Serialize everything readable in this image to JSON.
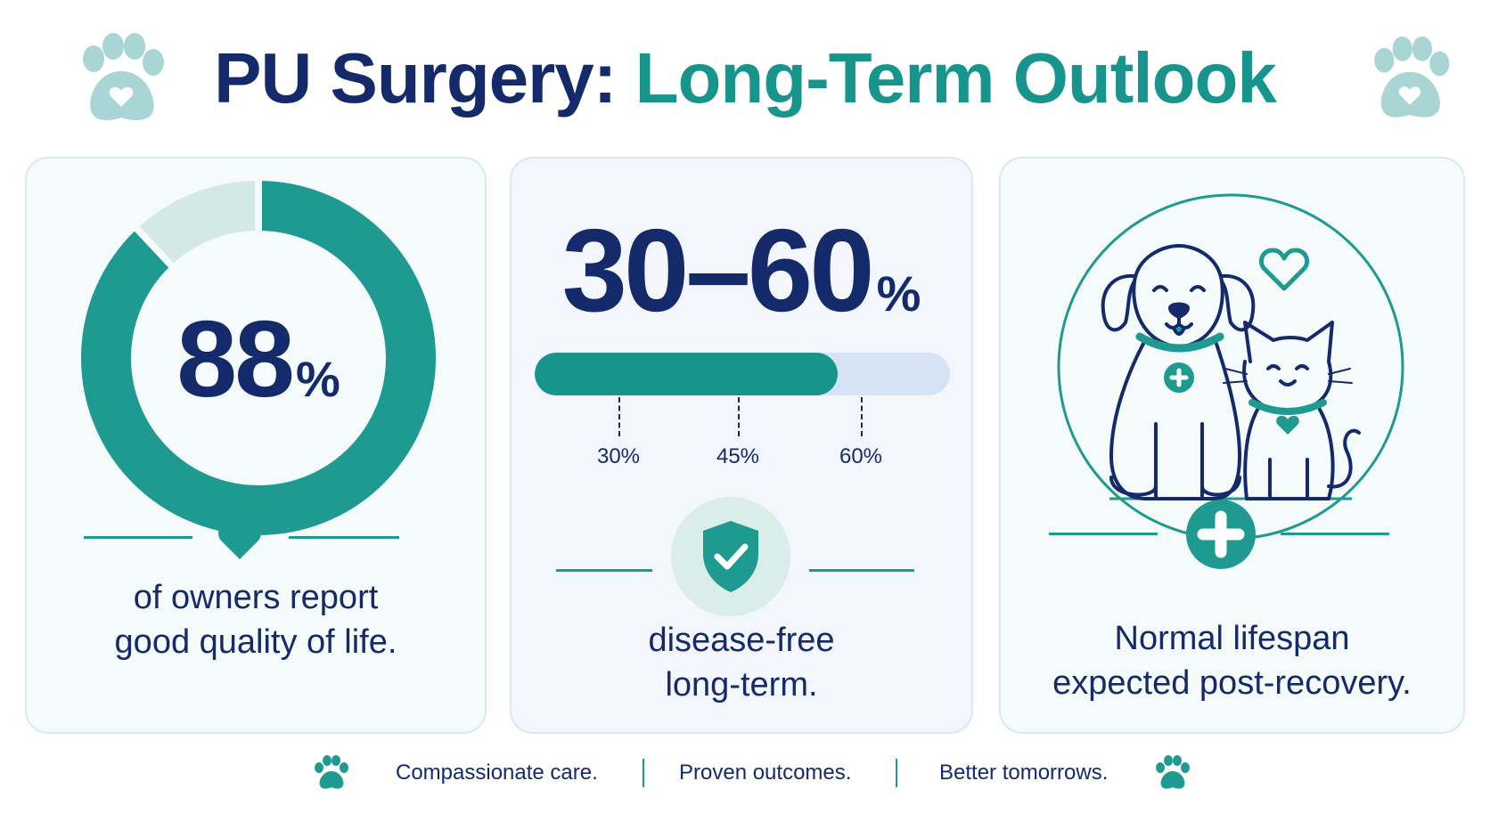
{
  "title": {
    "part1": "PU Surgery:",
    "part2": "Long-Term Outlook"
  },
  "colors": {
    "navy": "#142a6b",
    "teal": "#17958c",
    "light_teal": "#d4ecec",
    "track": "#d6e2f5"
  },
  "stat1": {
    "value": "88",
    "unit": "%",
    "fraction": 0.88,
    "caption_line1": "of owners report",
    "caption_line2": "good quality of life."
  },
  "stat2": {
    "value": "30–60",
    "unit": "%",
    "bar_fill_fraction": 0.73,
    "ticks": [
      "30%",
      "45%",
      "60%"
    ],
    "caption_line1": "disease-free",
    "caption_line2": "long-term."
  },
  "stat3": {
    "caption_line1": "Normal lifespan",
    "caption_line2": "expected post-recovery."
  },
  "footer": {
    "items": [
      "Compassionate care.",
      "Proven outcomes.",
      "Better tomorrows."
    ]
  }
}
